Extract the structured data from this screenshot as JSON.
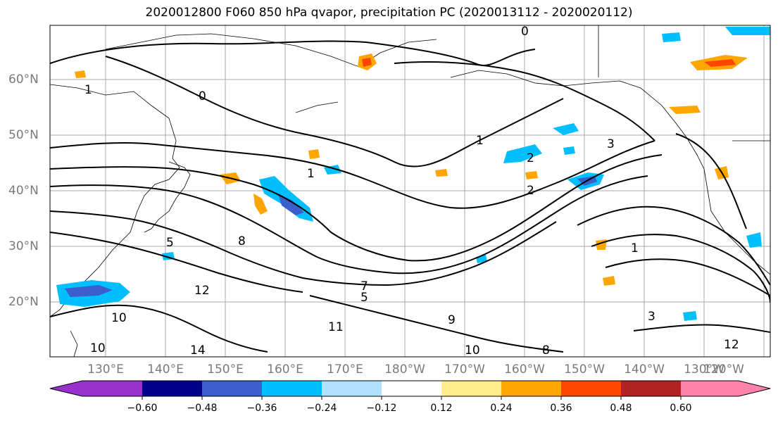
{
  "title": "2020012800 F060 850 hPa qvapor, precipitation PC (2020013112 - 2020020112)",
  "lat_labels": [
    "60°N",
    "50°N",
    "40°N",
    "30°N",
    "20°N"
  ],
  "lon_labels": [
    "130°E",
    "140°E",
    "150°E",
    "160°E",
    "170°E",
    "180°W",
    "170°W",
    "160°W",
    "150°W",
    "140°W",
    "130°W",
    "120°W"
  ],
  "contour_labels": [
    "0",
    "1",
    "1",
    "1",
    "2",
    "2",
    "3",
    "5",
    "5",
    "7",
    "8",
    "9",
    "10",
    "10",
    "11",
    "12",
    "14",
    "0",
    "1",
    "3",
    "8",
    "10",
    "12"
  ],
  "colorbar": {
    "colors": [
      "#9932CC",
      "#00008B",
      "#3A5FCD",
      "#00BFFF",
      "#B0E2FF",
      "#FFFFFF",
      "#FFEC8B",
      "#FFA500",
      "#FF4500",
      "#B22222",
      "#FF82AB"
    ],
    "ticks": [
      "−0.60",
      "−0.48",
      "−0.36",
      "−0.24",
      "−0.12",
      "0.12",
      "0.24",
      "0.36",
      "0.48",
      "0.60"
    ]
  }
}
